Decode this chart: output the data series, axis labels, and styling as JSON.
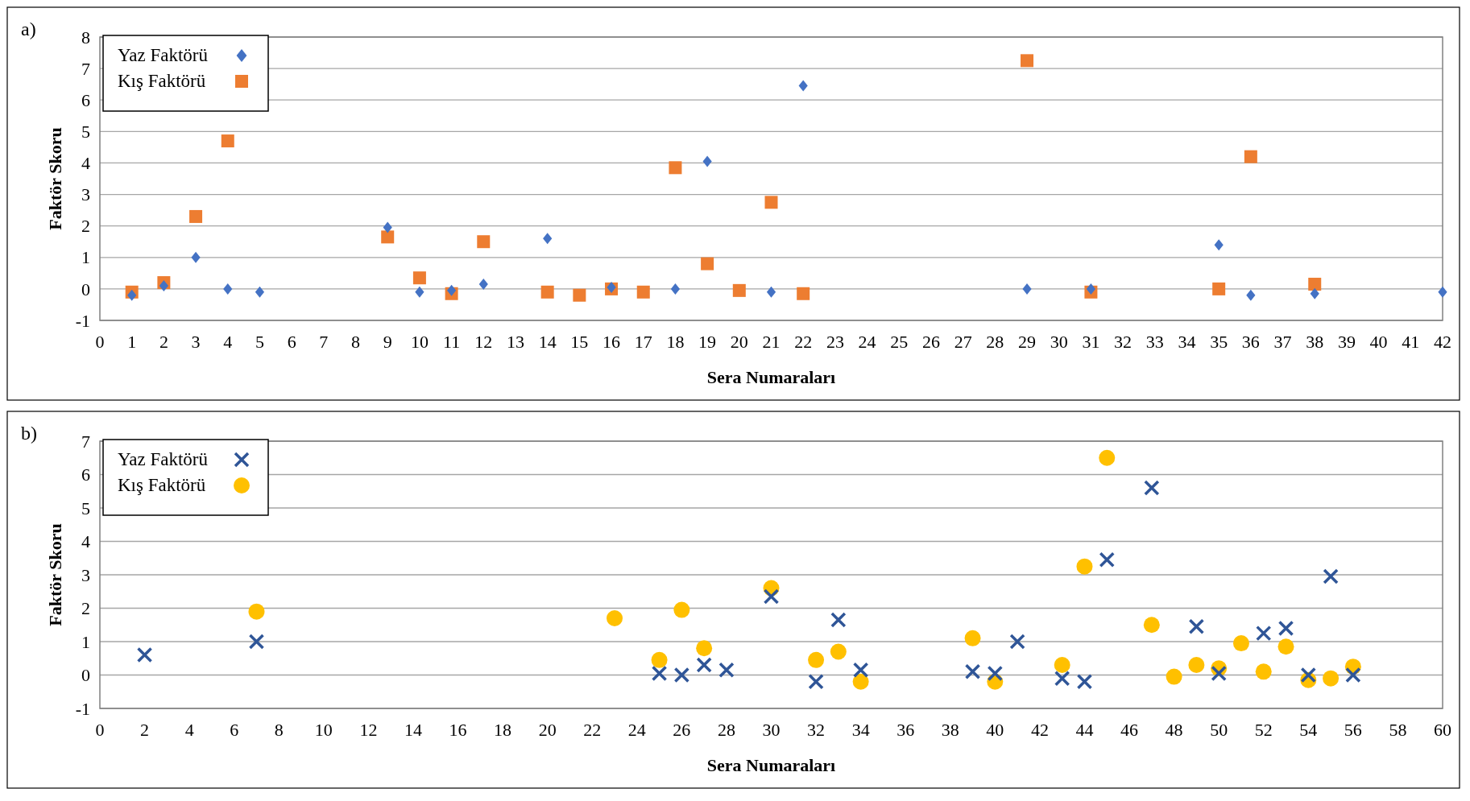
{
  "chart_data": [
    {
      "type": "scatter",
      "annotations": [
        "a)"
      ],
      "xlabel": "Sera Numaraları",
      "ylabel": "Faktör Skoru",
      "xlim": [
        0,
        42
      ],
      "xticks": [
        0,
        1,
        2,
        3,
        4,
        5,
        6,
        7,
        8,
        9,
        10,
        11,
        12,
        13,
        14,
        15,
        16,
        17,
        18,
        19,
        20,
        21,
        22,
        23,
        24,
        25,
        26,
        27,
        28,
        29,
        30,
        31,
        32,
        33,
        34,
        35,
        36,
        37,
        38,
        39,
        40,
        41,
        42
      ],
      "ylim": [
        -1,
        8
      ],
      "yticks": [
        -1,
        0,
        1,
        2,
        3,
        4,
        5,
        6,
        7,
        8
      ],
      "grid": "y",
      "legend": "top left",
      "series": [
        {
          "name": "Yaz Faktörü",
          "color": "#4472c4",
          "marker": "diamond",
          "x": [
            1,
            2,
            3,
            4,
            5,
            9,
            10,
            11,
            12,
            14,
            16,
            18,
            19,
            21,
            22,
            29,
            31,
            35,
            36,
            38,
            42
          ],
          "values": [
            -0.2,
            0.1,
            1.0,
            0.0,
            -0.1,
            1.95,
            -0.1,
            -0.05,
            0.15,
            1.6,
            0.05,
            0.0,
            4.05,
            -0.1,
            6.45,
            0.0,
            0.0,
            1.4,
            -0.2,
            -0.15,
            -0.1
          ]
        },
        {
          "name": "Kış Faktörü",
          "color": "#ed7d31",
          "marker": "square",
          "x": [
            1,
            2,
            3,
            4,
            9,
            10,
            11,
            12,
            14,
            15,
            16,
            17,
            18,
            19,
            20,
            21,
            22,
            29,
            31,
            35,
            36,
            38
          ],
          "values": [
            -0.1,
            0.2,
            2.3,
            4.7,
            1.65,
            0.35,
            -0.15,
            1.5,
            -0.1,
            -0.2,
            0.0,
            -0.1,
            3.85,
            0.8,
            -0.05,
            2.75,
            -0.15,
            7.25,
            -0.1,
            0.0,
            4.2,
            0.15
          ]
        }
      ]
    },
    {
      "type": "scatter",
      "annotations": [
        "b)"
      ],
      "xlabel": "Sera Numaraları",
      "ylabel": "Faktör Skoru",
      "xlim": [
        0,
        60
      ],
      "xticks": [
        0,
        2,
        4,
        6,
        8,
        10,
        12,
        14,
        16,
        18,
        20,
        22,
        24,
        26,
        28,
        30,
        32,
        34,
        36,
        38,
        40,
        42,
        44,
        46,
        48,
        50,
        52,
        54,
        56,
        58,
        60
      ],
      "ylim": [
        -1,
        7
      ],
      "yticks": [
        -1,
        0,
        1,
        2,
        3,
        4,
        5,
        6,
        7
      ],
      "grid": "y",
      "legend": "top left",
      "series": [
        {
          "name": "Yaz Faktörü",
          "color": "#2f5597",
          "marker": "cross",
          "x": [
            2,
            7,
            25,
            26,
            27,
            28,
            30,
            32,
            33,
            34,
            39,
            40,
            41,
            43,
            44,
            45,
            47,
            49,
            50,
            52,
            53,
            54,
            55,
            56
          ],
          "values": [
            0.6,
            1.0,
            0.05,
            0.0,
            0.3,
            0.15,
            2.35,
            -0.2,
            1.65,
            0.15,
            0.1,
            0.05,
            1.0,
            -0.1,
            -0.2,
            3.45,
            5.6,
            1.45,
            0.05,
            1.25,
            1.4,
            0.0,
            2.95,
            0.0
          ]
        },
        {
          "name": "Kış Faktörü",
          "color": "#ffc000",
          "marker": "circle",
          "x": [
            7,
            23,
            25,
            26,
            27,
            30,
            32,
            33,
            34,
            39,
            40,
            43,
            44,
            45,
            47,
            48,
            49,
            50,
            51,
            52,
            53,
            54,
            55,
            56
          ],
          "values": [
            1.9,
            1.7,
            0.45,
            1.95,
            0.8,
            2.6,
            0.45,
            0.7,
            -0.2,
            1.1,
            -0.2,
            0.3,
            3.25,
            6.5,
            1.5,
            -0.05,
            0.3,
            0.2,
            0.95,
            0.1,
            0.85,
            -0.15,
            -0.1,
            0.25
          ]
        }
      ]
    }
  ]
}
